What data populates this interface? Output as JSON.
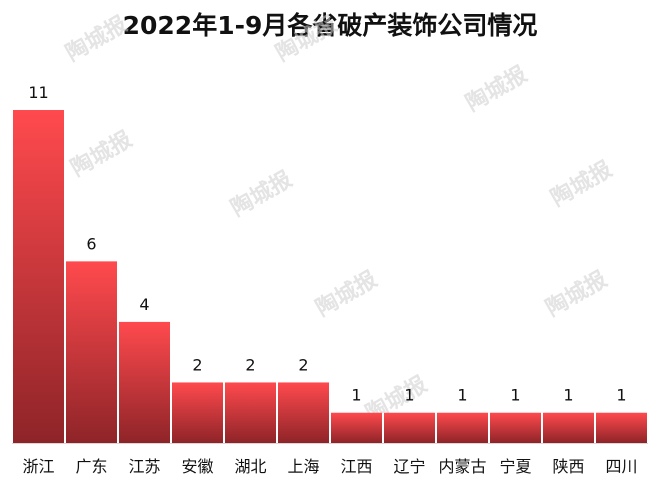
{
  "chart_data": {
    "type": "bar",
    "title": "2022年1-9月各省破产装饰公司情况",
    "categories": [
      "浙江",
      "广东",
      "江苏",
      "安徽",
      "湖北",
      "上海",
      "江西",
      "辽宁",
      "内蒙古",
      "宁夏",
      "陕西",
      "四川"
    ],
    "values": [
      11,
      6,
      4,
      2,
      2,
      2,
      1,
      1,
      1,
      1,
      1,
      1
    ],
    "xlabel": "",
    "ylabel": "",
    "ylim": [
      0,
      11
    ],
    "grid": false,
    "legend": "none",
    "data_labels": true
  },
  "watermark": "陶城报",
  "colors": {
    "bar_top": "#ff4a4e",
    "bar_bottom": "#8e2428",
    "axis": "#d8d8d8",
    "text": "#111111"
  }
}
